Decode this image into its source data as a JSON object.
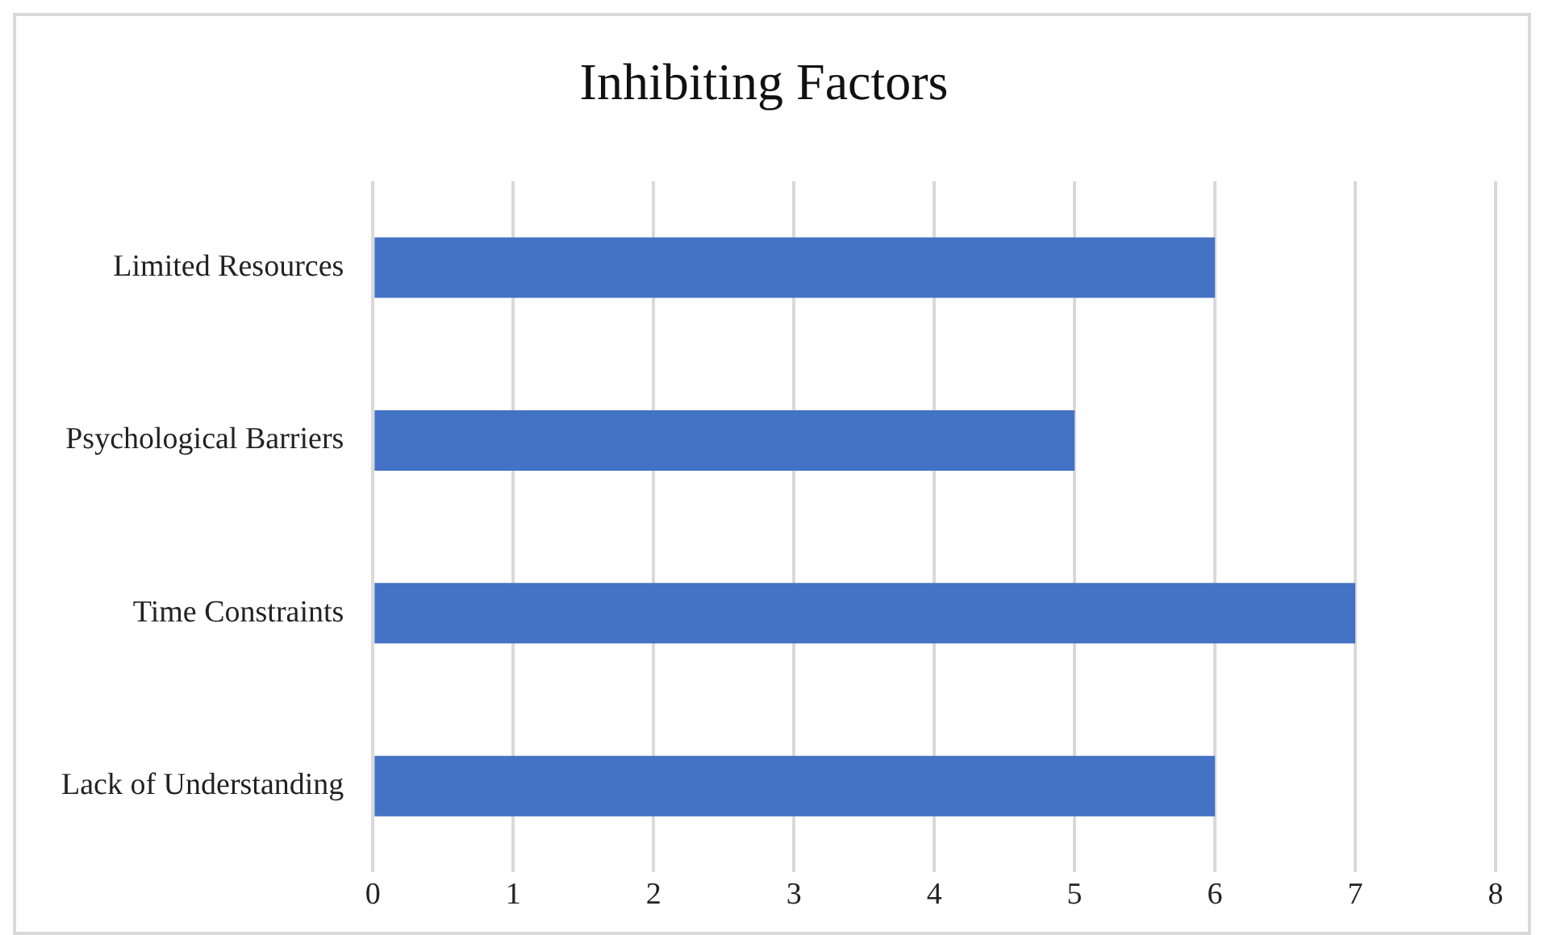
{
  "chart_data": {
    "type": "bar",
    "title": "Inhibiting Factors",
    "orientation": "horizontal",
    "categories": [
      "Limited Resources",
      "Psychological Barriers",
      "Time Constraints",
      "Lack of Understanding"
    ],
    "values": [
      6,
      5,
      7,
      6
    ],
    "color": "#4472c4",
    "xlim": [
      0,
      8
    ],
    "xticks": [
      0,
      1,
      2,
      3,
      4,
      5,
      6,
      7,
      8
    ],
    "grid": "x"
  }
}
